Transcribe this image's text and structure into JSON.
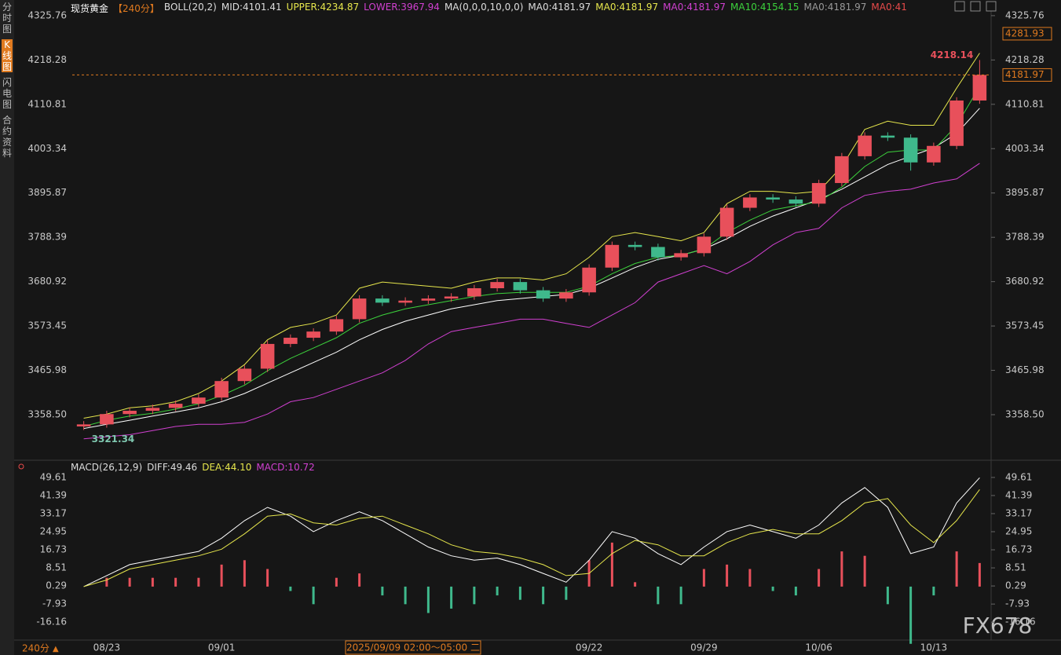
{
  "page": {
    "sidebar": [
      "分时图",
      "K线图",
      "闪电图",
      "合约资料"
    ],
    "period_button": "240分",
    "period_arrow": "▲",
    "watermark": "FX678",
    "cursor_label": "2025/09/09 02:00～05:00 二"
  },
  "chart_data": [
    {
      "type": "candlestick",
      "title": "现货黄金",
      "period": "【240分】",
      "header_items": [
        {
          "text": "BOLL(20,2)",
          "color": "#dddddd"
        },
        {
          "text": "MID:4101.41",
          "color": "#dddddd"
        },
        {
          "text": "UPPER:4234.87",
          "color": "#e6e64c"
        },
        {
          "text": "LOWER:3967.94",
          "color": "#d040d0"
        },
        {
          "text": "MA(0,0,0,10,0,0)",
          "color": "#dddddd"
        },
        {
          "text": "MA0:4181.97",
          "color": "#dddddd"
        },
        {
          "text": "MA0:4181.97",
          "color": "#e6e64c"
        },
        {
          "text": "MA0:4181.97",
          "color": "#d040d0"
        },
        {
          "text": "MA10:4154.15",
          "color": "#3cd23c"
        },
        {
          "text": "MA0:4181.97",
          "color": "#999999"
        },
        {
          "text": "MA0:41",
          "color": "#e84a4a"
        }
      ],
      "categories": [
        null,
        "08/23",
        null,
        null,
        null,
        null,
        "09/01",
        null,
        null,
        null,
        null,
        null,
        null,
        null,
        null,
        null,
        null,
        null,
        null,
        null,
        null,
        null,
        "09/22",
        null,
        null,
        null,
        null,
        "09/29",
        null,
        null,
        null,
        null,
        "10/06",
        null,
        null,
        null,
        null,
        "10/13",
        null,
        null
      ],
      "open": [
        3330,
        3335,
        3360,
        3368,
        3375,
        3385,
        3400,
        3440,
        3470,
        3530,
        3545,
        3560,
        3590,
        3640,
        3630,
        3635,
        3640,
        3645,
        3665,
        3680,
        3660,
        3640,
        3655,
        3715,
        3770,
        3765,
        3740,
        3750,
        3790,
        3860,
        3885,
        3880,
        3870,
        3920,
        3985,
        4035,
        4030,
        3970,
        4010,
        4120
      ],
      "high": [
        3343,
        3368,
        3376,
        3383,
        3393,
        3408,
        3448,
        3478,
        3538,
        3553,
        3568,
        3598,
        3648,
        3648,
        3643,
        3648,
        3653,
        3673,
        3688,
        3688,
        3668,
        3663,
        3723,
        3778,
        3778,
        3773,
        3758,
        3798,
        3868,
        3893,
        3893,
        3888,
        3928,
        3993,
        4043,
        4043,
        4038,
        4018,
        4128,
        4218.14
      ],
      "low": [
        3321.34,
        3327,
        3352,
        3360,
        3367,
        3377,
        3392,
        3432,
        3462,
        3522,
        3537,
        3552,
        3582,
        3622,
        3622,
        3627,
        3632,
        3637,
        3657,
        3652,
        3632,
        3632,
        3647,
        3707,
        3757,
        3732,
        3732,
        3742,
        3782,
        3852,
        3872,
        3862,
        3862,
        3912,
        3977,
        4022,
        3950,
        3962,
        4002,
        4112
      ],
      "close": [
        3335,
        3360,
        3368,
        3375,
        3385,
        3400,
        3440,
        3470,
        3530,
        3545,
        3560,
        3590,
        3640,
        3630,
        3635,
        3640,
        3645,
        3665,
        3680,
        3660,
        3640,
        3655,
        3715,
        3770,
        3765,
        3740,
        3750,
        3790,
        3860,
        3885,
        3880,
        3870,
        3920,
        3985,
        4035,
        4030,
        3970,
        4010,
        4120,
        4181.97
      ],
      "up_color": "#e8505b",
      "down_color": "#3fb98c",
      "lines": [
        {
          "color": "#e6e64c",
          "values": [
            3350,
            3360,
            3375,
            3380,
            3390,
            3410,
            3440,
            3480,
            3540,
            3570,
            3580,
            3600,
            3665,
            3680,
            3675,
            3670,
            3665,
            3680,
            3690,
            3690,
            3685,
            3700,
            3740,
            3790,
            3800,
            3790,
            3780,
            3800,
            3870,
            3900,
            3900,
            3895,
            3900,
            3960,
            4050,
            4070,
            4060,
            4060,
            4150,
            4234.87
          ]
        },
        {
          "color": "#ffffff",
          "values": [
            3325,
            3335,
            3345,
            3355,
            3365,
            3375,
            3390,
            3410,
            3435,
            3460,
            3485,
            3510,
            3540,
            3565,
            3585,
            3600,
            3615,
            3625,
            3635,
            3640,
            3645,
            3650,
            3665,
            3690,
            3715,
            3735,
            3745,
            3760,
            3785,
            3815,
            3840,
            3860,
            3880,
            3905,
            3935,
            3965,
            3985,
            4005,
            4040,
            4101.41
          ]
        },
        {
          "color": "#d040d0",
          "values": [
            3300,
            3305,
            3310,
            3320,
            3330,
            3335,
            3335,
            3340,
            3360,
            3390,
            3400,
            3420,
            3440,
            3460,
            3490,
            3530,
            3560,
            3570,
            3580,
            3590,
            3590,
            3580,
            3570,
            3600,
            3630,
            3680,
            3700,
            3720,
            3700,
            3730,
            3770,
            3800,
            3810,
            3860,
            3890,
            3900,
            3905,
            3920,
            3930,
            3967.94
          ]
        },
        {
          "color": "#3cd23c",
          "values": [
            3330,
            3345,
            3355,
            3362,
            3372,
            3385,
            3405,
            3430,
            3465,
            3495,
            3520,
            3545,
            3580,
            3600,
            3615,
            3625,
            3635,
            3645,
            3652,
            3655,
            3655,
            3655,
            3670,
            3700,
            3725,
            3740,
            3745,
            3760,
            3800,
            3830,
            3855,
            3865,
            3875,
            3910,
            3960,
            3995,
            4000,
            4000,
            4060,
            4154.15
          ]
        }
      ],
      "last_price": 4181.97,
      "marker_price": 4281.93,
      "ylim": [
        3250,
        4337
      ],
      "yticks": [
        4325.76,
        4218.28,
        4110.81,
        4003.34,
        3895.87,
        3788.39,
        3680.92,
        3573.45,
        3465.98,
        {
          "value": 3358.5,
          "label": "3358.50"
        }
      ]
    },
    {
      "type": "macd",
      "title": "MACD(26,12,9)",
      "header_items": [
        {
          "text": "DIFF:49.46",
          "color": "#dddddd"
        },
        {
          "text": "DEA:44.10",
          "color": "#e6e64c"
        },
        {
          "text": "MACD:10.72",
          "color": "#d040d0"
        }
      ],
      "diff": {
        "color": "#ffffff",
        "values": [
          0,
          5,
          10,
          12,
          14,
          16,
          22,
          30,
          36,
          32,
          25,
          30,
          34,
          30,
          24,
          18,
          14,
          12,
          13,
          10,
          6,
          2,
          12,
          25,
          22,
          15,
          10,
          18,
          25,
          28,
          25,
          22,
          28,
          38,
          45,
          36,
          15,
          18,
          38,
          49.46
        ]
      },
      "dea": {
        "color": "#e6e64c",
        "values": [
          0,
          3,
          8,
          10,
          12,
          14,
          17,
          24,
          32,
          33,
          29,
          28,
          31,
          32,
          28,
          24,
          19,
          16,
          15,
          13,
          10,
          5,
          6,
          15,
          21,
          19,
          14,
          14,
          20,
          24,
          26,
          24,
          24,
          30,
          38,
          40,
          28,
          20,
          30,
          44.1
        ]
      },
      "hist": [
        0,
        4,
        4,
        4,
        4,
        4,
        10,
        12,
        8,
        -2,
        -8,
        4,
        6,
        -4,
        -8,
        -12,
        -10,
        -8,
        -4,
        -6,
        -8,
        -6,
        12,
        20,
        2,
        -8,
        -8,
        8,
        10,
        8,
        -2,
        -4,
        8,
        16,
        14,
        -8,
        -26,
        -4,
        16,
        10.72
      ],
      "up_color": "#e8505b",
      "down_color": "#3fb98c",
      "ylim": [
        -24.3,
        56
      ],
      "yticks": [
        49.61,
        41.39,
        33.17,
        24.95,
        16.73,
        8.51,
        0.29,
        -7.93,
        -16.16
      ]
    }
  ]
}
